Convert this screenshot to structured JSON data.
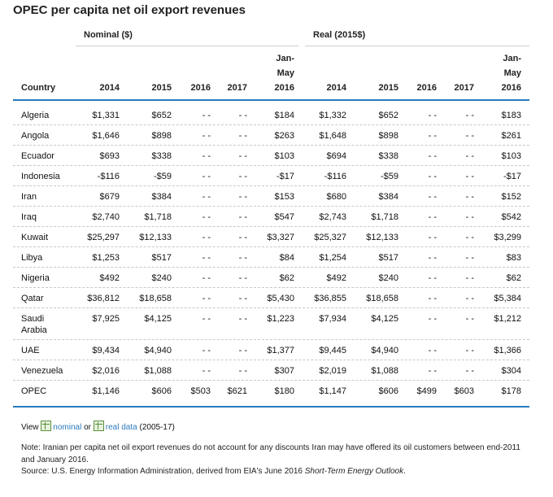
{
  "title": "OPEC per capita net oil export revenues",
  "groups": {
    "nominal": "Nominal ($)",
    "real": "Real (2015$)"
  },
  "headers": {
    "country": "Country",
    "y2014": "2014",
    "y2015": "2015",
    "y2016": "2016",
    "y2017": "2017",
    "janmay_l1": "Jan-",
    "janmay_l2": "May",
    "janmay_l3": "2016"
  },
  "rows": [
    {
      "country": "Algeria",
      "n14": "$1,331",
      "n15": "$652",
      "n16": "- -",
      "n17": "- -",
      "njm": "$184",
      "r14": "$1,332",
      "r15": "$652",
      "r16": "- -",
      "r17": "- -",
      "rjm": "$183"
    },
    {
      "country": "Angola",
      "n14": "$1,646",
      "n15": "$898",
      "n16": "- -",
      "n17": "- -",
      "njm": "$263",
      "r14": "$1,648",
      "r15": "$898",
      "r16": "- -",
      "r17": "- -",
      "rjm": "$261"
    },
    {
      "country": "Ecuador",
      "n14": "$693",
      "n15": "$338",
      "n16": "- -",
      "n17": "- -",
      "njm": "$103",
      "r14": "$694",
      "r15": "$338",
      "r16": "- -",
      "r17": "- -",
      "rjm": "$103"
    },
    {
      "country": "Indonesia",
      "n14": "-$116",
      "n15": "-$59",
      "n16": "- -",
      "n17": "- -",
      "njm": "-$17",
      "r14": "-$116",
      "r15": "-$59",
      "r16": "- -",
      "r17": "- -",
      "rjm": "-$17"
    },
    {
      "country": "Iran",
      "n14": "$679",
      "n15": "$384",
      "n16": "- -",
      "n17": "- -",
      "njm": "$153",
      "r14": "$680",
      "r15": "$384",
      "r16": "- -",
      "r17": "- -",
      "rjm": "$152"
    },
    {
      "country": "Iraq",
      "n14": "$2,740",
      "n15": "$1,718",
      "n16": "- -",
      "n17": "- -",
      "njm": "$547",
      "r14": "$2,743",
      "r15": "$1,718",
      "r16": "- -",
      "r17": "- -",
      "rjm": "$542"
    },
    {
      "country": "Kuwait",
      "n14": "$25,297",
      "n15": "$12,133",
      "n16": "- -",
      "n17": "- -",
      "njm": "$3,327",
      "r14": "$25,327",
      "r15": "$12,133",
      "r16": "- -",
      "r17": "- -",
      "rjm": "$3,299"
    },
    {
      "country": "Libya",
      "n14": "$1,253",
      "n15": "$517",
      "n16": "- -",
      "n17": "- -",
      "njm": "$84",
      "r14": "$1,254",
      "r15": "$517",
      "r16": "- -",
      "r17": "- -",
      "rjm": "$83"
    },
    {
      "country": "Nigeria",
      "n14": "$492",
      "n15": "$240",
      "n16": "- -",
      "n17": "- -",
      "njm": "$62",
      "r14": "$492",
      "r15": "$240",
      "r16": "- -",
      "r17": "- -",
      "rjm": "$62"
    },
    {
      "country": "Qatar",
      "n14": "$36,812",
      "n15": "$18,658",
      "n16": "- -",
      "n17": "- -",
      "njm": "$5,430",
      "r14": "$36,855",
      "r15": "$18,658",
      "r16": "- -",
      "r17": "- -",
      "rjm": "$5,384"
    },
    {
      "country": "Saudi",
      "country2": "Arabia",
      "n14": "$7,925",
      "n15": "$4,125",
      "n16": "- -",
      "n17": "- -",
      "njm": "$1,223",
      "r14": "$7,934",
      "r15": "$4,125",
      "r16": "- -",
      "r17": "- -",
      "rjm": "$1,212"
    },
    {
      "country": "UAE",
      "n14": "$9,434",
      "n15": "$4,940",
      "n16": "- -",
      "n17": "- -",
      "njm": "$1,377",
      "r14": "$9,445",
      "r15": "$4,940",
      "r16": "- -",
      "r17": "- -",
      "rjm": "$1,366"
    },
    {
      "country": "Venezuela",
      "n14": "$2,016",
      "n15": "$1,088",
      "n16": "- -",
      "n17": "- -",
      "njm": "$307",
      "r14": "$2,019",
      "r15": "$1,088",
      "r16": "- -",
      "r17": "- -",
      "rjm": "$304"
    },
    {
      "country": "OPEC",
      "n14": "$1,146",
      "n15": "$606",
      "n16": "$503",
      "n17": "$621",
      "njm": "$180",
      "r14": "$1,147",
      "r15": "$606",
      "r16": "$499",
      "r17": "$603",
      "rjm": "$178"
    }
  ],
  "footer": {
    "view": "View",
    "nominal_link": "nominal",
    "or": "or",
    "real_link": "real data",
    "range": "(2005-17)",
    "note": "Note: Iranian per capita net oil export revenues do not account for any discounts Iran may have offered its oil customers between end-2011 and January 2016.",
    "source_prefix": "Source: U.S. Energy Information Administration, derived from EIA's June 2016 ",
    "source_italic": "Short-Term Energy Outlook",
    "source_suffix": "."
  },
  "colors": {
    "accent": "#2b7bbd",
    "link": "#2b7bbd"
  },
  "icons": {
    "data_file": "spreadsheet-icon"
  }
}
